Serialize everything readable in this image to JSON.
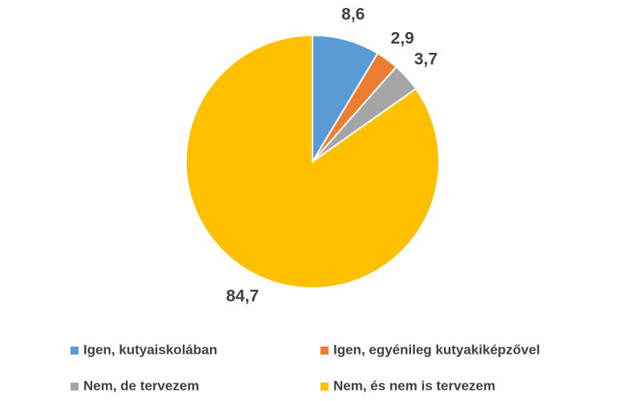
{
  "chart_data": {
    "type": "pie",
    "categories": [
      "Igen, kutyaiskolában",
      "Igen, egyénileg kutyakiképzővel",
      "Nem, de tervezem",
      "Nem, és nem is tervezem"
    ],
    "values": [
      8.6,
      2.9,
      3.7,
      84.7
    ],
    "value_labels": [
      "8,6",
      "2,9",
      "3,7",
      "84,7"
    ],
    "colors": [
      "#5b9bd5",
      "#ed7d31",
      "#a5a5a5",
      "#ffc000"
    ],
    "legend": "bottom"
  }
}
